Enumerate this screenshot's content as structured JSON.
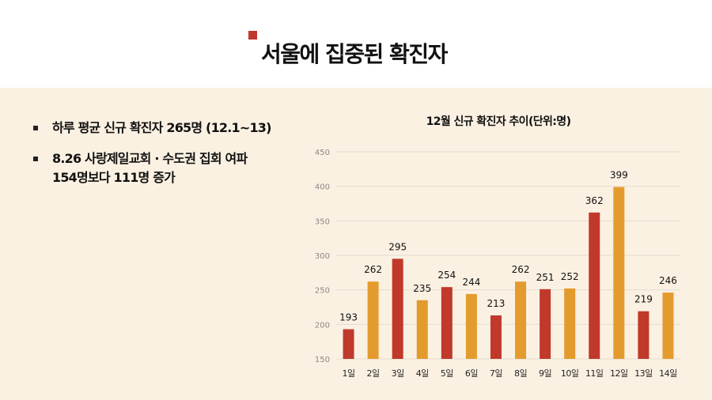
{
  "title": "서울에 집중된 확진자",
  "bullets": [
    {
      "lines": [
        "하루 평균 신규 확진자 265명 (12.1~13)"
      ]
    },
    {
      "lines": [
        "8.26 사랑제일교회 · 수도권 집회 여파",
        "154명보다 111명 증가"
      ]
    }
  ],
  "colors": {
    "red": "#c0392b",
    "orange": "#e49b2d",
    "accent": "#c0392b"
  },
  "chart_data": {
    "type": "bar",
    "title": "12월 신규 확진자 추이(단위:명)",
    "categories": [
      "1일",
      "2일",
      "3일",
      "4일",
      "5일",
      "6일",
      "7일",
      "8일",
      "9일",
      "10일",
      "11일",
      "12일",
      "13일",
      "14일"
    ],
    "values": [
      193,
      262,
      295,
      235,
      254,
      244,
      213,
      262,
      251,
      252,
      362,
      399,
      219,
      246
    ],
    "bar_colors": [
      "red",
      "orange",
      "red",
      "orange",
      "red",
      "orange",
      "red",
      "orange",
      "red",
      "orange",
      "red",
      "orange",
      "red",
      "orange"
    ],
    "ylim": [
      150,
      450
    ],
    "yticks": [
      150,
      200,
      250,
      300,
      350,
      400,
      450
    ],
    "grid": true,
    "xlabel": "",
    "ylabel": ""
  }
}
